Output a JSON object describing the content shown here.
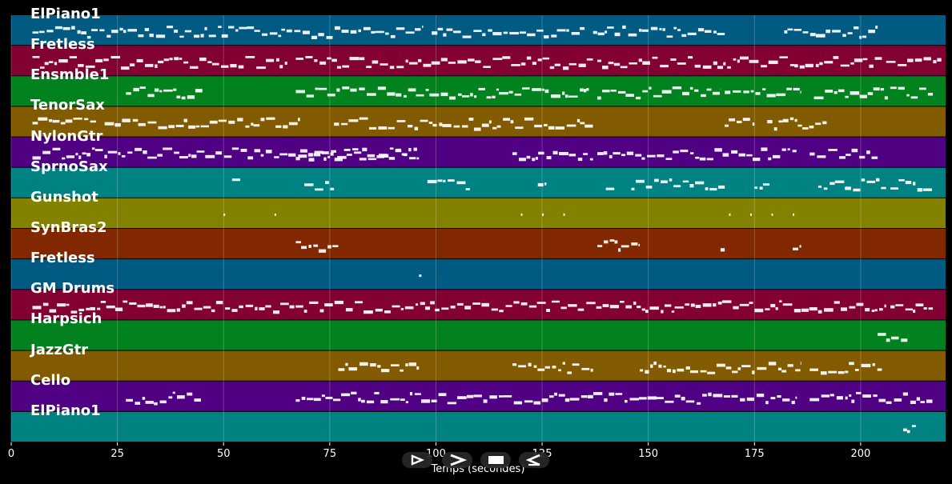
{
  "chart_data": {
    "type": "piano-roll",
    "xlabel": "Temps (secondes)",
    "xlim": [
      0,
      220
    ],
    "x_ticks": [
      0,
      25,
      50,
      75,
      100,
      125,
      150,
      175,
      200
    ],
    "tracks": [
      {
        "name": "ElPiano1",
        "color": "#015a82",
        "segments": [
          [
            5,
            97
          ],
          [
            99,
            135
          ],
          [
            137,
            168
          ],
          [
            182,
            204
          ]
        ]
      },
      {
        "name": "Fretless",
        "color": "#820032",
        "segments": [
          [
            5,
            65
          ],
          [
            67,
            137
          ],
          [
            138,
            205
          ],
          [
            206,
            219
          ]
        ]
      },
      {
        "name": "Ensmble1",
        "color": "#02821e",
        "segments": [
          [
            27,
            45
          ],
          [
            67,
            136
          ],
          [
            138,
            167
          ],
          [
            168,
            186
          ],
          [
            189,
            217
          ]
        ]
      },
      {
        "name": "TenorSax",
        "color": "#825a00",
        "segments": [
          [
            5,
            20
          ],
          [
            22,
            68
          ],
          [
            76,
            137
          ],
          [
            168,
            175
          ],
          [
            178,
            192
          ]
        ]
      },
      {
        "name": "NylonGtr",
        "color": "#500082",
        "segments": [
          [
            5,
            96
          ],
          [
            67,
            96
          ],
          [
            118,
            137
          ],
          [
            138,
            185
          ],
          [
            188,
            204
          ]
        ]
      },
      {
        "name": "SprnoSax",
        "color": "#008282",
        "segments": [
          [
            52,
            54
          ],
          [
            69,
            76
          ],
          [
            98,
            108
          ],
          [
            124,
            126
          ],
          [
            140,
            142
          ],
          [
            146,
            168
          ],
          [
            175,
            179
          ],
          [
            190,
            206
          ],
          [
            207,
            217
          ]
        ]
      },
      {
        "name": "Gunshot",
        "color": "#828200",
        "segments": [
          [
            50,
            50.3
          ],
          [
            62,
            62.3
          ],
          [
            120,
            120.3
          ],
          [
            125,
            125.3
          ],
          [
            130,
            130.3
          ],
          [
            169,
            169.3
          ],
          [
            174,
            174.3
          ],
          [
            179,
            179.3
          ],
          [
            184,
            184.3
          ]
        ]
      },
      {
        "name": "SynBras2",
        "color": "#822800",
        "segments": [
          [
            67,
            77
          ],
          [
            138,
            148
          ],
          [
            167,
            168
          ],
          [
            184,
            186
          ]
        ]
      },
      {
        "name": "Fretless",
        "color": "#015a82",
        "segments": [
          [
            96,
            96.6
          ]
        ]
      },
      {
        "name": "GM Drums",
        "color": "#820032",
        "segments": [
          [
            5,
            206
          ],
          [
            207,
            217
          ]
        ]
      },
      {
        "name": "Harpsich",
        "color": "#02821e",
        "segments": [
          [
            204,
            211
          ]
        ]
      },
      {
        "name": "JazzGtr",
        "color": "#825a00",
        "segments": [
          [
            77,
            96
          ],
          [
            118,
            137
          ],
          [
            148,
            186
          ],
          [
            188,
            205
          ]
        ]
      },
      {
        "name": "Cello",
        "color": "#500082",
        "segments": [
          [
            27,
            45
          ],
          [
            67,
            185
          ],
          [
            188,
            217
          ]
        ]
      },
      {
        "name": "ElPiano1",
        "color": "#008282",
        "segments": [
          [
            210,
            213
          ]
        ]
      }
    ]
  },
  "toolbar": {
    "buttons": [
      {
        "name": "step-forward",
        "icon": "play-outline-icon"
      },
      {
        "name": "fast-forward",
        "icon": "fast-forward-icon"
      },
      {
        "name": "stop",
        "icon": "stop-icon"
      },
      {
        "name": "step-back",
        "icon": "step-back-icon"
      }
    ]
  }
}
